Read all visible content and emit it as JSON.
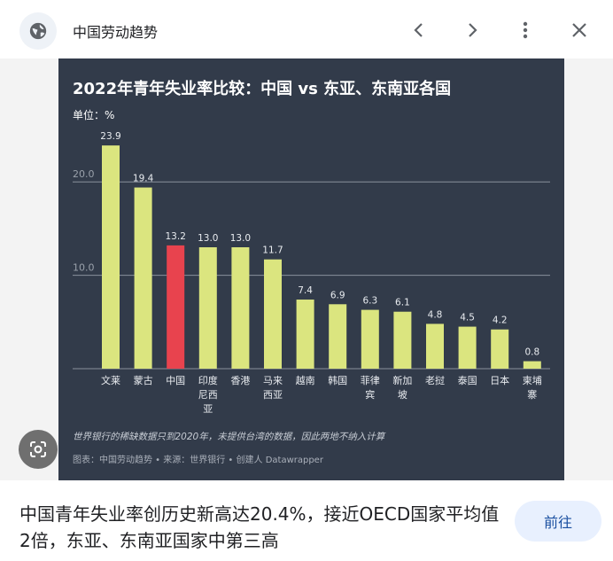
{
  "header": {
    "site_name": "中国劳动趋势",
    "icons": [
      "globe-icon",
      "chevron-left-icon",
      "chevron-right-icon",
      "more-vert-icon",
      "close-icon"
    ]
  },
  "chart_data": {
    "type": "bar",
    "title": "2022年青年失业率比较：中国 vs 东亚、东南亚各国",
    "unit_label": "单位：%",
    "categories": [
      [
        "文莱"
      ],
      [
        "蒙古"
      ],
      [
        "中国"
      ],
      [
        "印度",
        "尼西",
        "亚"
      ],
      [
        "香港"
      ],
      [
        "马来",
        "西亚"
      ],
      [
        "越南"
      ],
      [
        "韩国"
      ],
      [
        "菲律",
        "宾"
      ],
      [
        "新加",
        "坡"
      ],
      [
        "老挝"
      ],
      [
        "泰国"
      ],
      [
        "日本"
      ],
      [
        "柬埔",
        "寨"
      ]
    ],
    "values": [
      23.9,
      19.4,
      13.2,
      13.0,
      13.0,
      11.7,
      7.4,
      6.9,
      6.3,
      6.1,
      4.8,
      4.5,
      4.2,
      0.8
    ],
    "value_labels": [
      "23.9",
      "19.4",
      "13.2",
      "13.0",
      "13.0",
      "11.7",
      "7.4",
      "6.9",
      "6.3",
      "6.1",
      "4.8",
      "4.5",
      "4.2",
      "0.8"
    ],
    "highlight_index": 2,
    "ylim": [
      0,
      26
    ],
    "yticks": [
      0,
      10,
      20
    ],
    "ytick_labels": [
      "",
      "10.0",
      "20.0"
    ],
    "grid": true,
    "colors": {
      "bar": "#dbe57f",
      "highlight": "#e8434e",
      "background": "#323b4a",
      "grid": "#8a919c"
    },
    "note": "世界银行的稀缺数据只到2020年，未提供台湾的数据，因此两地不纳入计算",
    "source": "图表：中国劳动趋势 • 来源：世界银行 • 创建人 Datawrapper"
  },
  "caption": {
    "text": "中国青年失业率创历史新高达20.4%，接近OECD国家平均值2倍，东亚、东南亚国家中第三高",
    "visit_label": "前往"
  }
}
